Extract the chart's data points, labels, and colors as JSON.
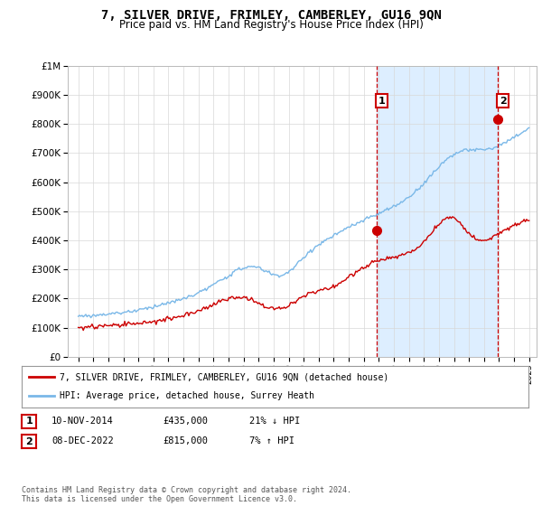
{
  "title": "7, SILVER DRIVE, FRIMLEY, CAMBERLEY, GU16 9QN",
  "subtitle": "Price paid vs. HM Land Registry's House Price Index (HPI)",
  "title_fontsize": 10,
  "subtitle_fontsize": 8.5,
  "ylabel_ticks": [
    "£0",
    "£100K",
    "£200K",
    "£300K",
    "£400K",
    "£500K",
    "£600K",
    "£700K",
    "£800K",
    "£900K",
    "£1M"
  ],
  "ytick_values": [
    0,
    100000,
    200000,
    300000,
    400000,
    500000,
    600000,
    700000,
    800000,
    900000,
    1000000
  ],
  "ylim": [
    0,
    1000000
  ],
  "year_start": 1995,
  "year_end": 2025,
  "hpi_color": "#7ab8e8",
  "price_color": "#cc0000",
  "vline_color": "#cc0000",
  "shade_color": "#ddeeff",
  "sale1_year": 2014.87,
  "sale1_price": 435000,
  "sale1_label": "1",
  "sale2_year": 2022.93,
  "sale2_price": 815000,
  "sale2_label": "2",
  "legend_label_red": "7, SILVER DRIVE, FRIMLEY, CAMBERLEY, GU16 9QN (detached house)",
  "legend_label_blue": "HPI: Average price, detached house, Surrey Heath",
  "table_row1": [
    "1",
    "10-NOV-2014",
    "£435,000",
    "21% ↓ HPI"
  ],
  "table_row2": [
    "2",
    "08-DEC-2022",
    "£815,000",
    "7% ↑ HPI"
  ],
  "footnote": "Contains HM Land Registry data © Crown copyright and database right 2024.\nThis data is licensed under the Open Government Licence v3.0.",
  "bg_color": "#ffffff",
  "grid_color": "#d8d8d8"
}
